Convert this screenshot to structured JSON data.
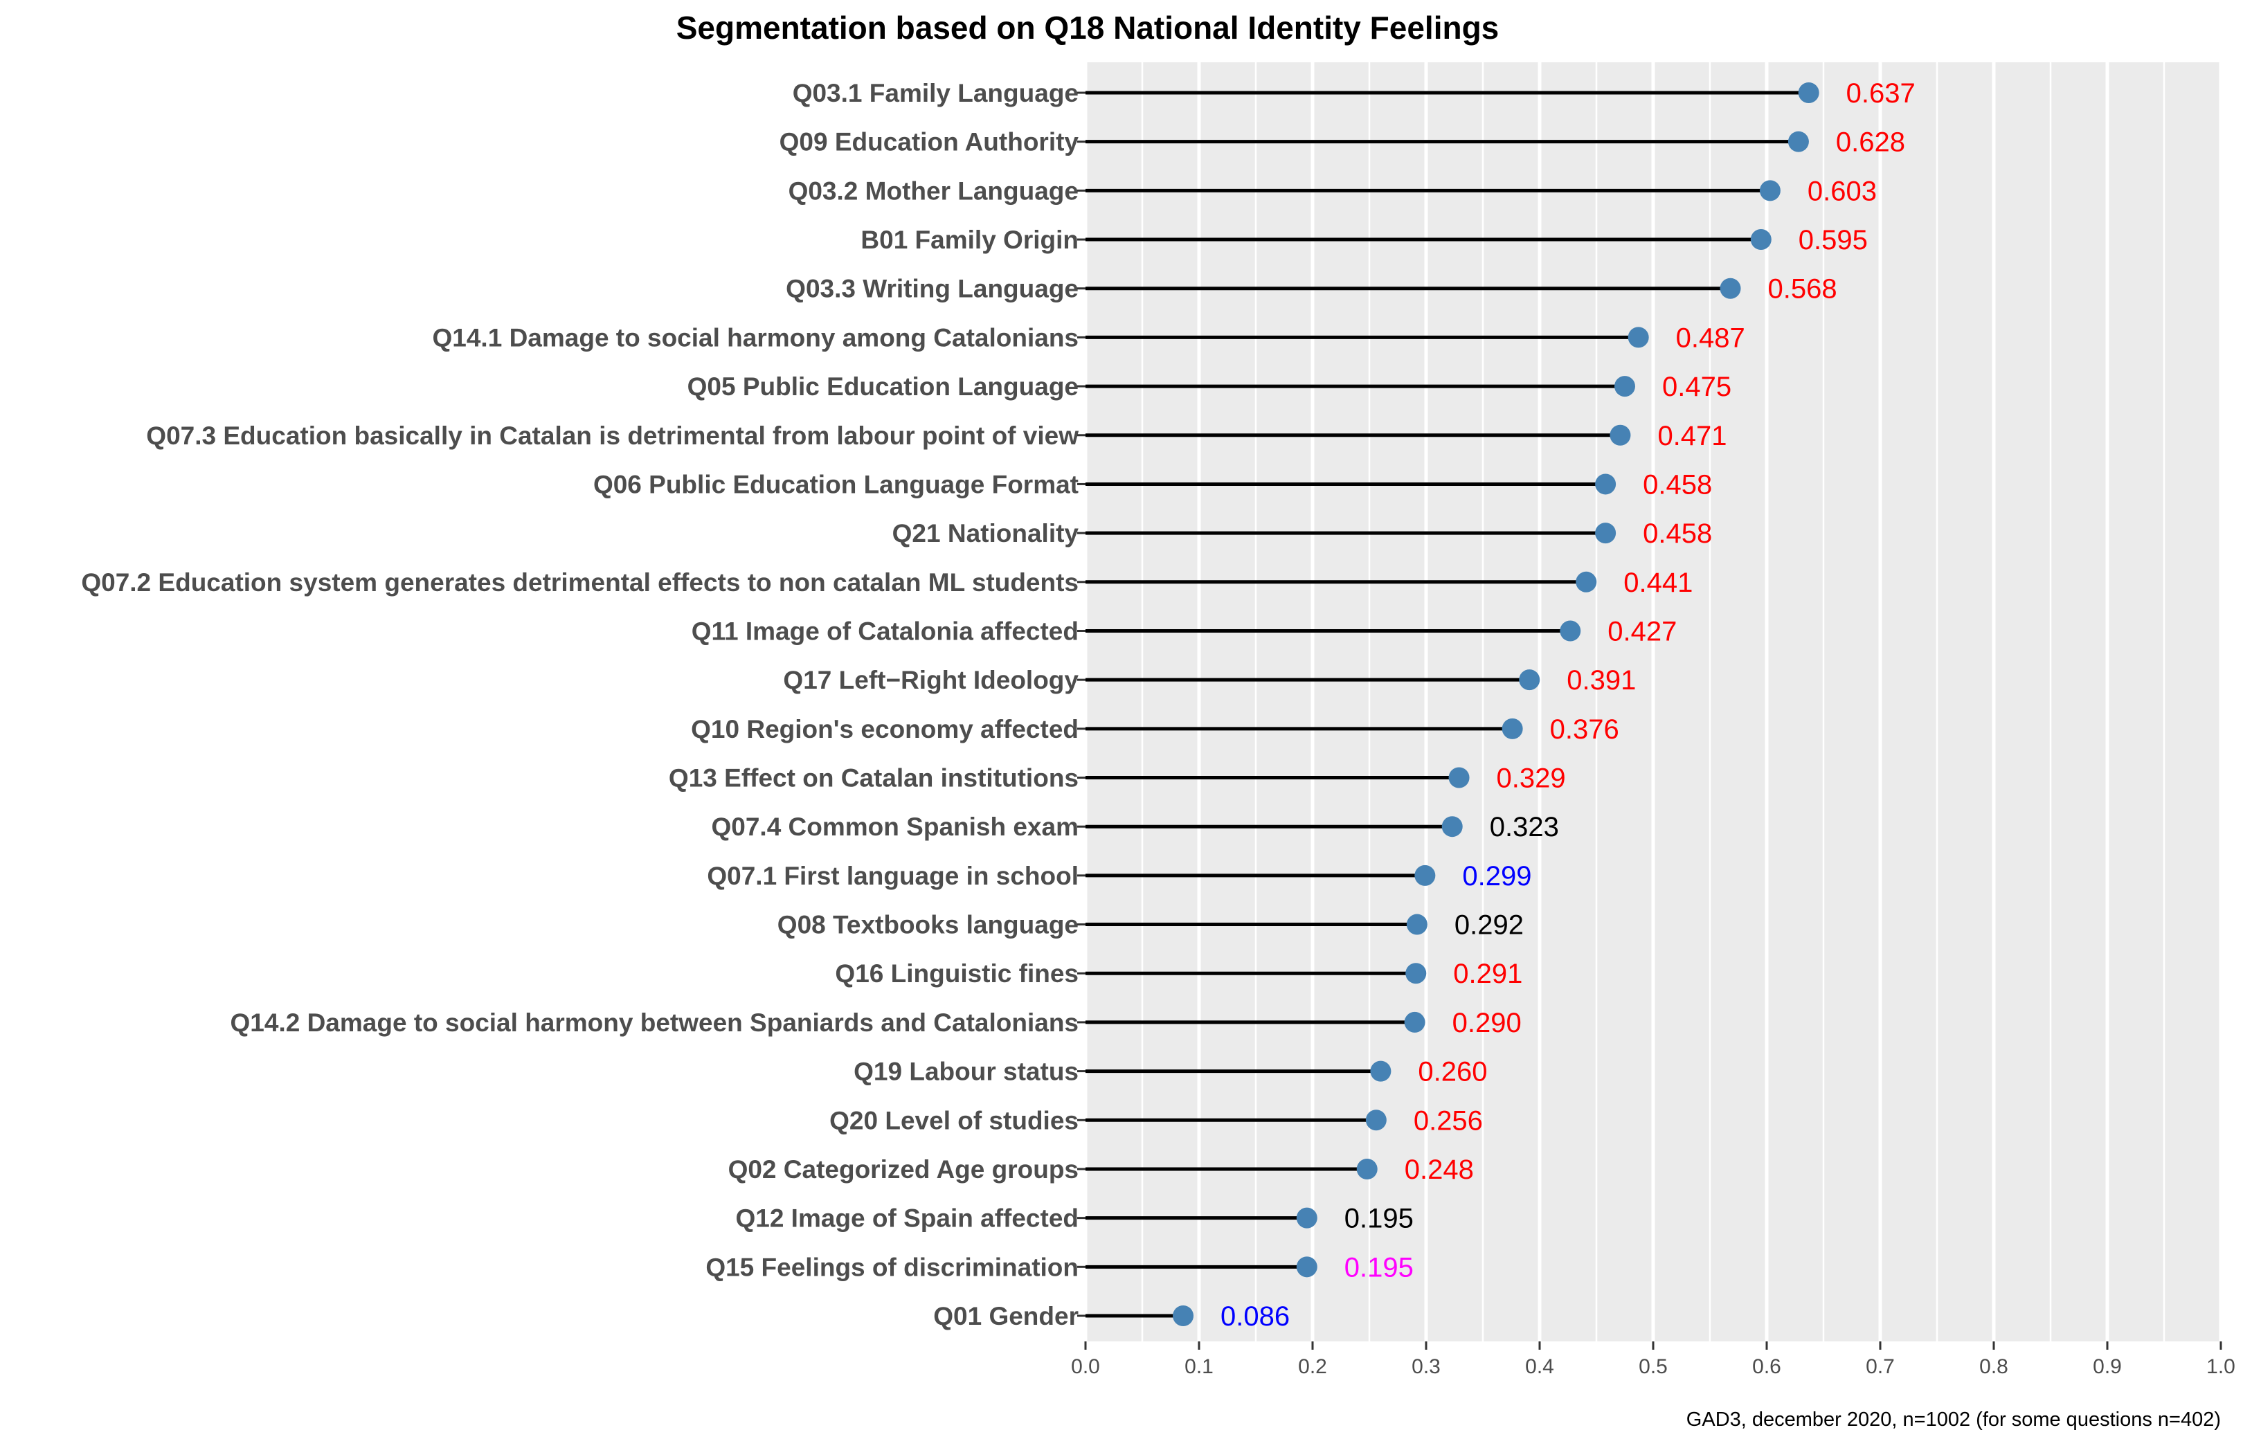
{
  "chart_data": {
    "type": "lollipop",
    "title": "Segmentation based on  Q18 National Identity Feelings",
    "caption": "GAD3, december 2020, n=1002 (for some questions n=402)",
    "xlim": [
      0,
      1
    ],
    "xticks": [
      "0.0",
      "0.1",
      "0.2",
      "0.3",
      "0.4",
      "0.5",
      "0.6",
      "0.7",
      "0.8",
      "0.9",
      "1.0"
    ],
    "grid": true,
    "point_color": "#4682b4",
    "panel_color": "#ebebeb",
    "gridline_color": "#ffffff",
    "items": [
      {
        "label": "Q03.1 Family Language",
        "value": 0.637,
        "value_label": "0.637",
        "label_color": "#ff0000"
      },
      {
        "label": "Q09 Education Authority",
        "value": 0.628,
        "value_label": "0.628",
        "label_color": "#ff0000"
      },
      {
        "label": "Q03.2 Mother Language",
        "value": 0.603,
        "value_label": "0.603",
        "label_color": "#ff0000"
      },
      {
        "label": "B01 Family Origin",
        "value": 0.595,
        "value_label": "0.595",
        "label_color": "#ff0000"
      },
      {
        "label": "Q03.3 Writing Language",
        "value": 0.568,
        "value_label": "0.568",
        "label_color": "#ff0000"
      },
      {
        "label": "Q14.1 Damage to social harmony among Catalonians",
        "value": 0.487,
        "value_label": "0.487",
        "label_color": "#ff0000"
      },
      {
        "label": "Q05 Public Education Language",
        "value": 0.475,
        "value_label": "0.475",
        "label_color": "#ff0000"
      },
      {
        "label": "Q07.3 Education basically in Catalan is detrimental from labour point of view",
        "value": 0.471,
        "value_label": "0.471",
        "label_color": "#ff0000"
      },
      {
        "label": "Q06 Public Education Language Format",
        "value": 0.458,
        "value_label": "0.458",
        "label_color": "#ff0000"
      },
      {
        "label": "Q21 Nationality",
        "value": 0.458,
        "value_label": "0.458",
        "label_color": "#ff0000"
      },
      {
        "label": "Q07.2 Education system generates detrimental effects to non catalan ML students",
        "value": 0.441,
        "value_label": "0.441",
        "label_color": "#ff0000"
      },
      {
        "label": "Q11 Image of Catalonia affected",
        "value": 0.427,
        "value_label": "0.427",
        "label_color": "#ff0000"
      },
      {
        "label": "Q17 Left−Right Ideology",
        "value": 0.391,
        "value_label": "0.391",
        "label_color": "#ff0000"
      },
      {
        "label": "Q10 Region's economy affected",
        "value": 0.376,
        "value_label": "0.376",
        "label_color": "#ff0000"
      },
      {
        "label": "Q13 Effect on Catalan institutions",
        "value": 0.329,
        "value_label": "0.329",
        "label_color": "#ff0000"
      },
      {
        "label": "Q07.4 Common Spanish exam",
        "value": 0.323,
        "value_label": "0.323",
        "label_color": "#000000"
      },
      {
        "label": "Q07.1 First language in school",
        "value": 0.299,
        "value_label": "0.299",
        "label_color": "#0000ff"
      },
      {
        "label": "Q08 Textbooks language",
        "value": 0.292,
        "value_label": "0.292",
        "label_color": "#000000"
      },
      {
        "label": "Q16 Linguistic fines",
        "value": 0.291,
        "value_label": "0.291",
        "label_color": "#ff0000"
      },
      {
        "label": "Q14.2 Damage to social harmony between Spaniards and Catalonians",
        "value": 0.29,
        "value_label": "0.290",
        "label_color": "#ff0000"
      },
      {
        "label": "Q19 Labour status",
        "value": 0.26,
        "value_label": "0.260",
        "label_color": "#ff0000"
      },
      {
        "label": "Q20 Level of studies",
        "value": 0.256,
        "value_label": "0.256",
        "label_color": "#ff0000"
      },
      {
        "label": "Q02 Categorized Age groups",
        "value": 0.248,
        "value_label": "0.248",
        "label_color": "#ff0000"
      },
      {
        "label": "Q12 Image of Spain affected",
        "value": 0.195,
        "value_label": "0.195",
        "label_color": "#000000"
      },
      {
        "label": "Q15 Feelings of discrimination",
        "value": 0.195,
        "value_label": "0.195",
        "label_color": "#ff00ff"
      },
      {
        "label": "Q01 Gender",
        "value": 0.086,
        "value_label": "0.086",
        "label_color": "#0000ff"
      }
    ]
  }
}
